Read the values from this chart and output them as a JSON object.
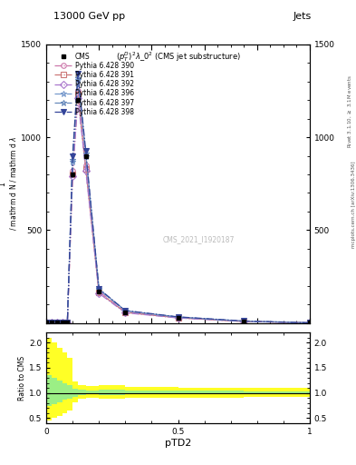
{
  "title_top": "13000 GeV pp",
  "title_right": "Jets",
  "plot_title": "$(p_T^D)^2\\lambda\\_0^2$ (CMS jet substructure)",
  "watermark": "CMS_2021_I1920187",
  "right_label_top": "Rivet 3.1.10, $\\geq$ 3.1M events",
  "right_label_bottom": "mcplots.cern.ch [arXiv:1306.3436]",
  "ylabel_ratio": "Ratio to CMS",
  "xlabel": "pTD2",
  "xlim": [
    0.0,
    1.0
  ],
  "ylim_main": [
    0,
    1400
  ],
  "ylim_ratio": [
    0.4,
    2.2
  ],
  "yticks_main": [
    0,
    500,
    1000,
    1500
  ],
  "yticks_ratio": [
    0.5,
    1.0,
    1.5,
    2.0
  ],
  "cms_x": [
    0.0,
    0.02,
    0.04,
    0.06,
    0.08,
    0.1,
    0.12,
    0.15,
    0.2,
    0.3,
    0.5,
    0.75,
    1.0
  ],
  "cms_y": [
    5,
    5,
    5,
    5,
    5,
    800,
    1200,
    900,
    170,
    60,
    30,
    10,
    2
  ],
  "series": [
    {
      "label": "Pythia 6.428 390",
      "color": "#cc77aa",
      "linestyle": "-.",
      "marker": "o",
      "markerfacecolor": "none",
      "x": [
        0.0,
        0.02,
        0.04,
        0.06,
        0.08,
        0.1,
        0.12,
        0.15,
        0.2,
        0.3,
        0.5,
        0.75,
        1.0
      ],
      "y": [
        5,
        5,
        5,
        5,
        5,
        820,
        1250,
        850,
        170,
        60,
        30,
        10,
        2
      ]
    },
    {
      "label": "Pythia 6.428 391",
      "color": "#cc7777",
      "linestyle": "-.",
      "marker": "s",
      "markerfacecolor": "none",
      "x": [
        0.0,
        0.02,
        0.04,
        0.06,
        0.08,
        0.1,
        0.12,
        0.15,
        0.2,
        0.3,
        0.5,
        0.75,
        1.0
      ],
      "y": [
        5,
        5,
        5,
        5,
        5,
        800,
        1230,
        830,
        165,
        58,
        29,
        9,
        2
      ]
    },
    {
      "label": "Pythia 6.428 392",
      "color": "#aa77cc",
      "linestyle": "-.",
      "marker": "D",
      "markerfacecolor": "none",
      "x": [
        0.0,
        0.02,
        0.04,
        0.06,
        0.08,
        0.1,
        0.12,
        0.15,
        0.2,
        0.3,
        0.5,
        0.75,
        1.0
      ],
      "y": [
        5,
        5,
        5,
        5,
        5,
        790,
        1210,
        820,
        160,
        56,
        28,
        9,
        2
      ]
    },
    {
      "label": "Pythia 6.428 396",
      "color": "#7799cc",
      "linestyle": "-.",
      "marker": "*",
      "markerfacecolor": "none",
      "x": [
        0.0,
        0.02,
        0.04,
        0.06,
        0.08,
        0.1,
        0.12,
        0.15,
        0.2,
        0.3,
        0.5,
        0.75,
        1.0
      ],
      "y": [
        5,
        5,
        5,
        5,
        5,
        870,
        1310,
        900,
        180,
        65,
        32,
        11,
        2
      ]
    },
    {
      "label": "Pythia 6.428 397",
      "color": "#6688bb",
      "linestyle": "-.",
      "marker": "*",
      "markerfacecolor": "none",
      "x": [
        0.0,
        0.02,
        0.04,
        0.06,
        0.08,
        0.1,
        0.12,
        0.15,
        0.2,
        0.3,
        0.5,
        0.75,
        1.0
      ],
      "y": [
        5,
        5,
        5,
        5,
        5,
        880,
        1320,
        910,
        183,
        67,
        33,
        11,
        2
      ]
    },
    {
      "label": "Pythia 6.428 398",
      "color": "#334499",
      "linestyle": "-.",
      "marker": "v",
      "markerfacecolor": "#334499",
      "x": [
        0.0,
        0.02,
        0.04,
        0.06,
        0.08,
        0.1,
        0.12,
        0.15,
        0.2,
        0.3,
        0.5,
        0.75,
        1.0
      ],
      "y": [
        5,
        5,
        5,
        5,
        5,
        900,
        1340,
        925,
        185,
        68,
        34,
        12,
        2
      ]
    }
  ],
  "ratio_bins": [
    0.0,
    0.02,
    0.04,
    0.06,
    0.08,
    0.1,
    0.12,
    0.15,
    0.2,
    0.3,
    0.5,
    0.75,
    1.0
  ],
  "ratio_yellow_lo": [
    0.45,
    0.5,
    0.55,
    0.6,
    0.65,
    0.82,
    0.88,
    0.9,
    0.88,
    0.9,
    0.91,
    0.92,
    0.93
  ],
  "ratio_yellow_hi": [
    2.1,
    2.0,
    1.9,
    1.8,
    1.7,
    1.22,
    1.15,
    1.13,
    1.15,
    1.12,
    1.11,
    1.1,
    1.09
  ],
  "ratio_green_lo": [
    0.75,
    0.78,
    0.82,
    0.86,
    0.88,
    0.93,
    0.96,
    0.97,
    0.96,
    0.97,
    0.97,
    0.98,
    0.98
  ],
  "ratio_green_hi": [
    1.35,
    1.3,
    1.25,
    1.2,
    1.15,
    1.09,
    1.06,
    1.05,
    1.06,
    1.05,
    1.04,
    1.03,
    1.03
  ]
}
